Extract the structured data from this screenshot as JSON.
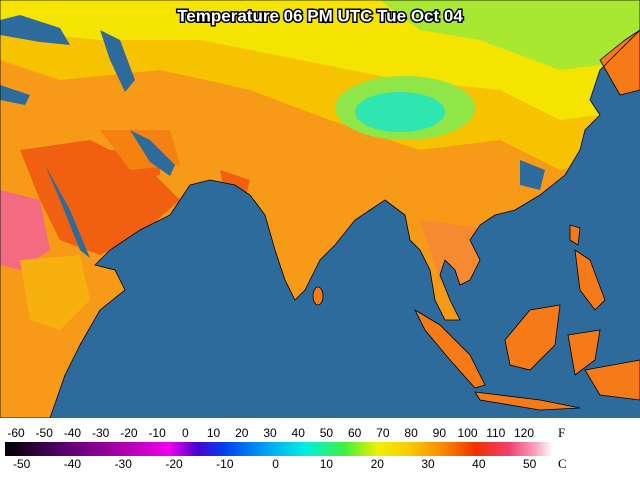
{
  "header": {
    "title": "Temperature 06 PM UTC Tue Oct 04"
  },
  "legend": {
    "fahrenheit": {
      "unit": "F",
      "labels": [
        -60,
        -50,
        -40,
        -30,
        -20,
        -10,
        0,
        10,
        20,
        30,
        40,
        50,
        60,
        70,
        80,
        90,
        100,
        110,
        120
      ]
    },
    "celsius": {
      "unit": "C",
      "labels": [
        -50,
        -40,
        -30,
        -20,
        -10,
        0,
        10,
        20,
        30,
        40,
        50
      ]
    }
  }
}
